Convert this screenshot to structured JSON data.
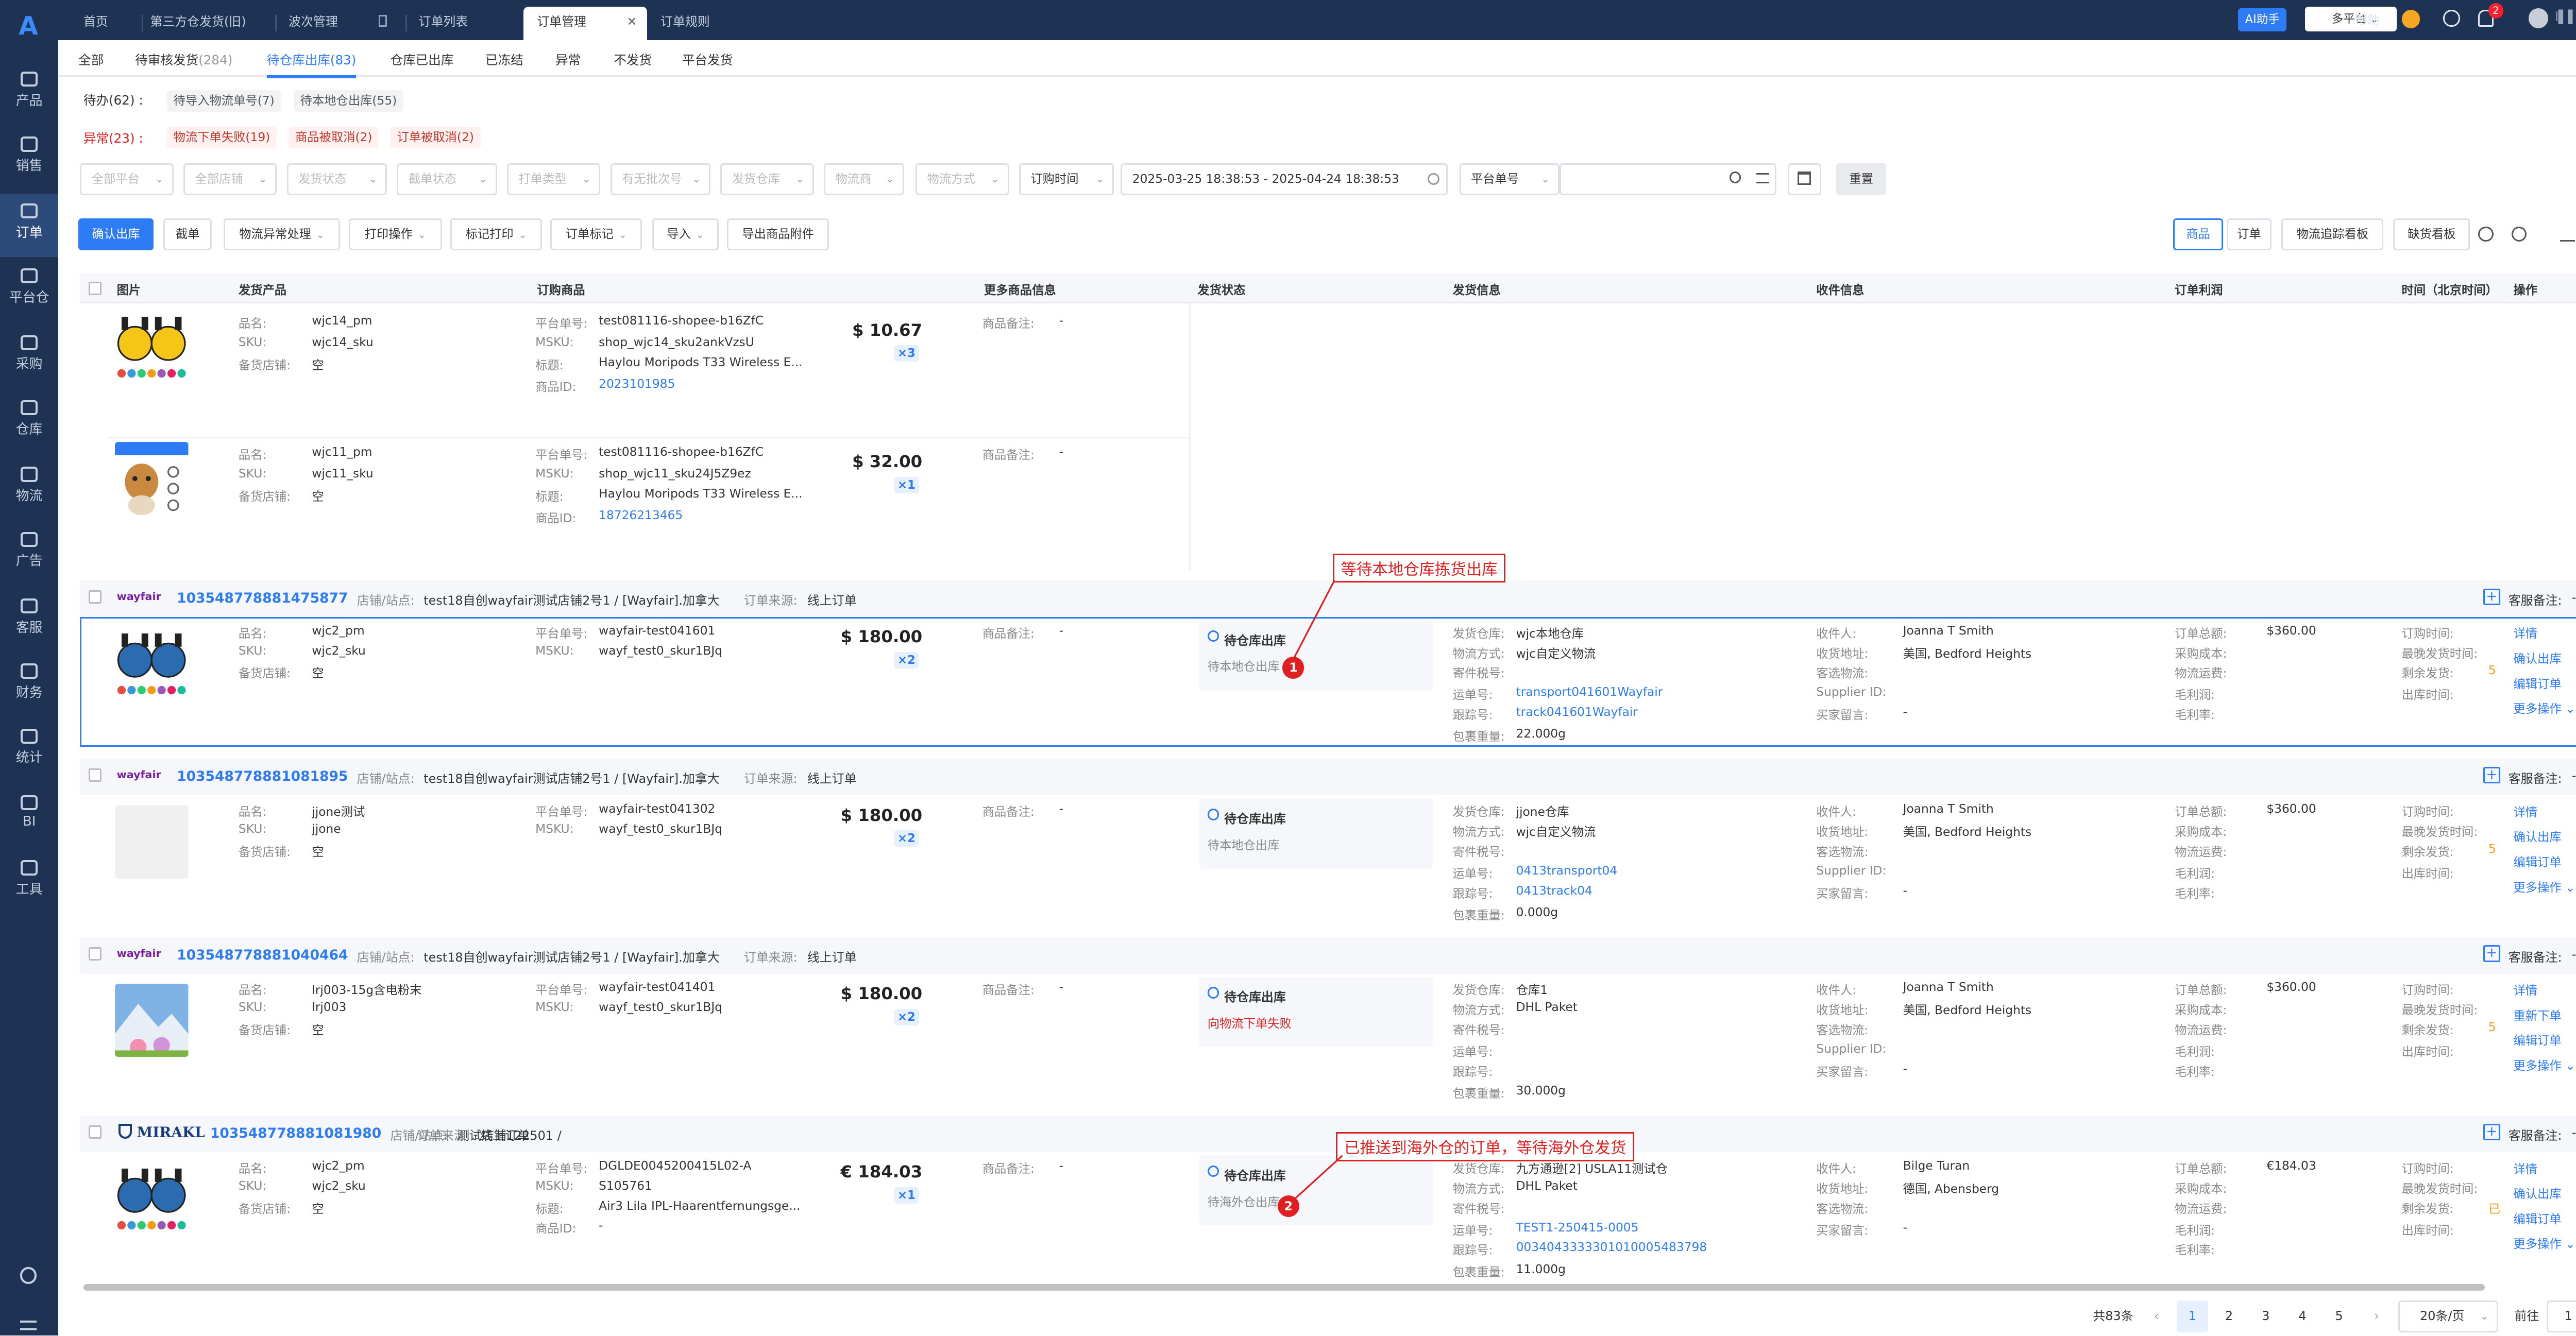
{
  "sidebar": {
    "logo": "A",
    "items": [
      {
        "label": "产品"
      },
      {
        "label": "销售"
      },
      {
        "label": "订单"
      },
      {
        "label": "平台仓"
      },
      {
        "label": "采购"
      },
      {
        "label": "仓库"
      },
      {
        "label": "物流"
      },
      {
        "label": "广告"
      },
      {
        "label": "客服"
      },
      {
        "label": "财务"
      },
      {
        "label": "统计"
      },
      {
        "label": "BI"
      },
      {
        "label": "工具"
      }
    ]
  },
  "topbar": {
    "tabs": [
      "首页",
      "第三方仓发货(旧)",
      "波次管理",
      "订单列表",
      "订单管理",
      "订单规则"
    ],
    "ai": "AI助手",
    "platform": "多平台",
    "help": "帮助",
    "badge": "2",
    "username": "l▌▌▌▌"
  },
  "subtabs": [
    {
      "label": "全部",
      "count": ""
    },
    {
      "label": "待审核发货",
      "count": "(284)"
    },
    {
      "label": "待仓库出库",
      "count": "(83)"
    },
    {
      "label": "仓库已出库",
      "count": ""
    },
    {
      "label": "已冻结",
      "count": ""
    },
    {
      "label": "异常",
      "count": ""
    },
    {
      "label": "不发货",
      "count": ""
    },
    {
      "label": "平台发货",
      "count": ""
    }
  ],
  "todo": {
    "label": "待办",
    "count": "(62)",
    "chips": [
      "待导入物流单号(7)",
      "待本地仓出库(55)"
    ]
  },
  "abnormal": {
    "label": "异常",
    "count": "(23)",
    "chips": [
      "物流下单失败(19)",
      "商品被取消(2)",
      "订单被取消(2)"
    ]
  },
  "filters": [
    "全部平台",
    "全部店铺",
    "发货状态",
    "截单状态",
    "打单类型",
    "有无批次号",
    "发货仓库",
    "物流商",
    "物流方式",
    "订购时间"
  ],
  "date_range": "2025-03-25 18:38:53 - 2025-04-24 18:38:53",
  "search_field": "平台单号",
  "reset": "重置",
  "actions": [
    "确认出库",
    "截单",
    "物流异常处理",
    "打印操作",
    "标记打印",
    "订单标记",
    "导入",
    "导出商品附件"
  ],
  "view": [
    "商品",
    "订单",
    "物流追踪看板",
    "缺货看板"
  ],
  "columns": [
    "图片",
    "发货产品",
    "订购商品",
    "更多商品信息",
    "发货状态",
    "发货信息",
    "收件信息",
    "订单利润",
    "时间（北京时间）",
    "操作"
  ],
  "labels": {
    "pname": "品名:",
    "sku": "SKU:",
    "store": "备货店铺:",
    "pid": "平台单号:",
    "msku": "MSKU:",
    "title": "标题:",
    "itemid": "商品ID:",
    "remark": "商品备注:",
    "dash": "-",
    "warehouse": "发货仓库:",
    "method": "物流方式:",
    "taxno": "寄件税号:",
    "waybill": "运单号:",
    "track": "跟踪号:",
    "weight": "包裹重量:",
    "receiver": "收件人:",
    "addr": "收货地址:",
    "chosen": "客选物流:",
    "supplier": "Supplier ID:",
    "buyer": "买家留言:",
    "total": "订单总额:",
    "cost": "采购成本:",
    "freight": "物流运费:",
    "gross": "毛利润:",
    "rate": "毛利率:",
    "otime": "订购时间:",
    "late": "最晚发货时间:",
    "remain": "剩余发货:",
    "outtime": "出库时间:",
    "shop": "店铺/站点:",
    "source": "订单来源:",
    "service": "客服备注:",
    "empty": "空"
  },
  "top_items": [
    {
      "name": "wjc14_pm",
      "sku": "wjc14_sku",
      "store": "空",
      "pid": "test081116-shopee-b16ZfC",
      "msku": "shop_wjc14_sku2ankVzsU",
      "title": "Haylou Moripods T33 Wireless E...",
      "itemid": "2023101985",
      "price": "$ 10.67",
      "qty": "×3"
    },
    {
      "name": "wjc11_pm",
      "sku": "wjc11_sku",
      "store": "空",
      "pid": "test081116-shopee-b16ZfC",
      "msku": "shop_wjc11_sku24J5Z9ez",
      "title": "Haylou Moripods T33 Wireless E...",
      "itemid": "18726213465",
      "price": "$ 32.00",
      "qty": "×1"
    }
  ],
  "orders": [
    {
      "platform": "wayfair",
      "no": "103548778881475877",
      "shop": "test18自创wayfair测试店铺2号1 / [Wayfair].加拿大",
      "source": "线上订单",
      "name": "wjc2_pm",
      "sku": "wjc2_sku",
      "store": "空",
      "pid": "wayfair-test041601",
      "msku": "wayf_test0_skur1BJq",
      "price": "$ 180.00",
      "qty": "×2",
      "status": "待仓库出库",
      "status_desc": "待本地仓出库",
      "wh": "wjc本地仓库",
      "method": "wjc自定义物流",
      "taxno": "",
      "waybill": "transport041601Wayfair",
      "track": "track041601Wayfair",
      "weight": "22.000g",
      "receiver": "Joanna T Smith",
      "addr": "美国, Bedford Heights",
      "total": "$360.00",
      "remain": "5",
      "ops": [
        "详情",
        "确认出库",
        "编辑订单",
        "更多操作 ⌄"
      ]
    },
    {
      "platform": "wayfair",
      "no": "103548778881081895",
      "shop": "test18自创wayfair测试店铺2号1 / [Wayfair].加拿大",
      "source": "线上订单",
      "name": "jjone测试",
      "sku": "jjone",
      "store": "空",
      "pid": "wayfair-test041302",
      "msku": "wayf_test0_skur1BJq",
      "price": "$ 180.00",
      "qty": "×2",
      "status": "待仓库出库",
      "status_desc": "待本地仓出库",
      "wh": "jjone仓库",
      "method": "wjc自定义物流",
      "taxno": "",
      "waybill": "0413transport04",
      "track": "0413track04",
      "weight": "0.000g",
      "receiver": "Joanna T Smith",
      "addr": "美国, Bedford Heights",
      "total": "$360.00",
      "remain": "5",
      "ops": [
        "详情",
        "确认出库",
        "编辑订单",
        "更多操作 ⌄"
      ]
    },
    {
      "platform": "wayfair",
      "no": "103548778881040464",
      "shop": "test18自创wayfair测试店铺2号1 / [Wayfair].加拿大",
      "source": "线上订单",
      "name": "lrj003-15g含电粉末",
      "sku": "lrj003",
      "store": "空",
      "pid": "wayfair-test041401",
      "msku": "wayf_test0_skur1BJq",
      "price": "$ 180.00",
      "qty": "×2",
      "status": "待仓库出库",
      "status_desc": "向物流下单失败",
      "wh": "仓库1",
      "method": "DHL Paket",
      "taxno": "",
      "waybill": "",
      "track": "",
      "weight": "30.000g",
      "receiver": "Joanna T Smith",
      "addr": "美国, Bedford Heights",
      "total": "$360.00",
      "remain": "5",
      "ops": [
        "详情",
        "重新下单",
        "编辑订单",
        "更多操作 ⌄"
      ]
    },
    {
      "platform": "MIRAKL",
      "no": "103548778881081980",
      "shop": "测试店铺122501 /",
      "source": "线上订单",
      "name": "wjc2_pm",
      "sku": "wjc2_sku",
      "store": "空",
      "pid": "DGLDE0045200415L02-A",
      "msku": "S105761",
      "title": "Air3 Lila IPL-Haarentfernungsge...",
      "itemid": "-",
      "price": "€ 184.03",
      "qty": "×1",
      "status": "待仓库出库",
      "status_desc": "待海外仓出库",
      "wh": "九方通逊[2] USLA11测试仓",
      "method": "DHL Paket",
      "taxno": "",
      "waybill": "TEST1-250415-0005",
      "track": "003404333330101000548379​8",
      "weight": "11.000g",
      "receiver": "Bilge Turan",
      "addr": "德国, Abensberg",
      "total": "€184.03",
      "remain": "已",
      "ops": [
        "详情",
        "确认出库",
        "编辑订单",
        "更多操作 ⌄"
      ]
    }
  ],
  "annotations": [
    {
      "n": "1",
      "text": "等待本地仓库拣货出库"
    },
    {
      "n": "2",
      "text": "已推送到海外仓的订单，等待海外仓发货"
    }
  ],
  "pagination": {
    "total": "共83条",
    "pages": [
      "1",
      "2",
      "3",
      "4",
      "5"
    ],
    "size": "20条/页",
    "goto": "前往",
    "goto_val": "1",
    "prev": "‹",
    "next": "›"
  }
}
